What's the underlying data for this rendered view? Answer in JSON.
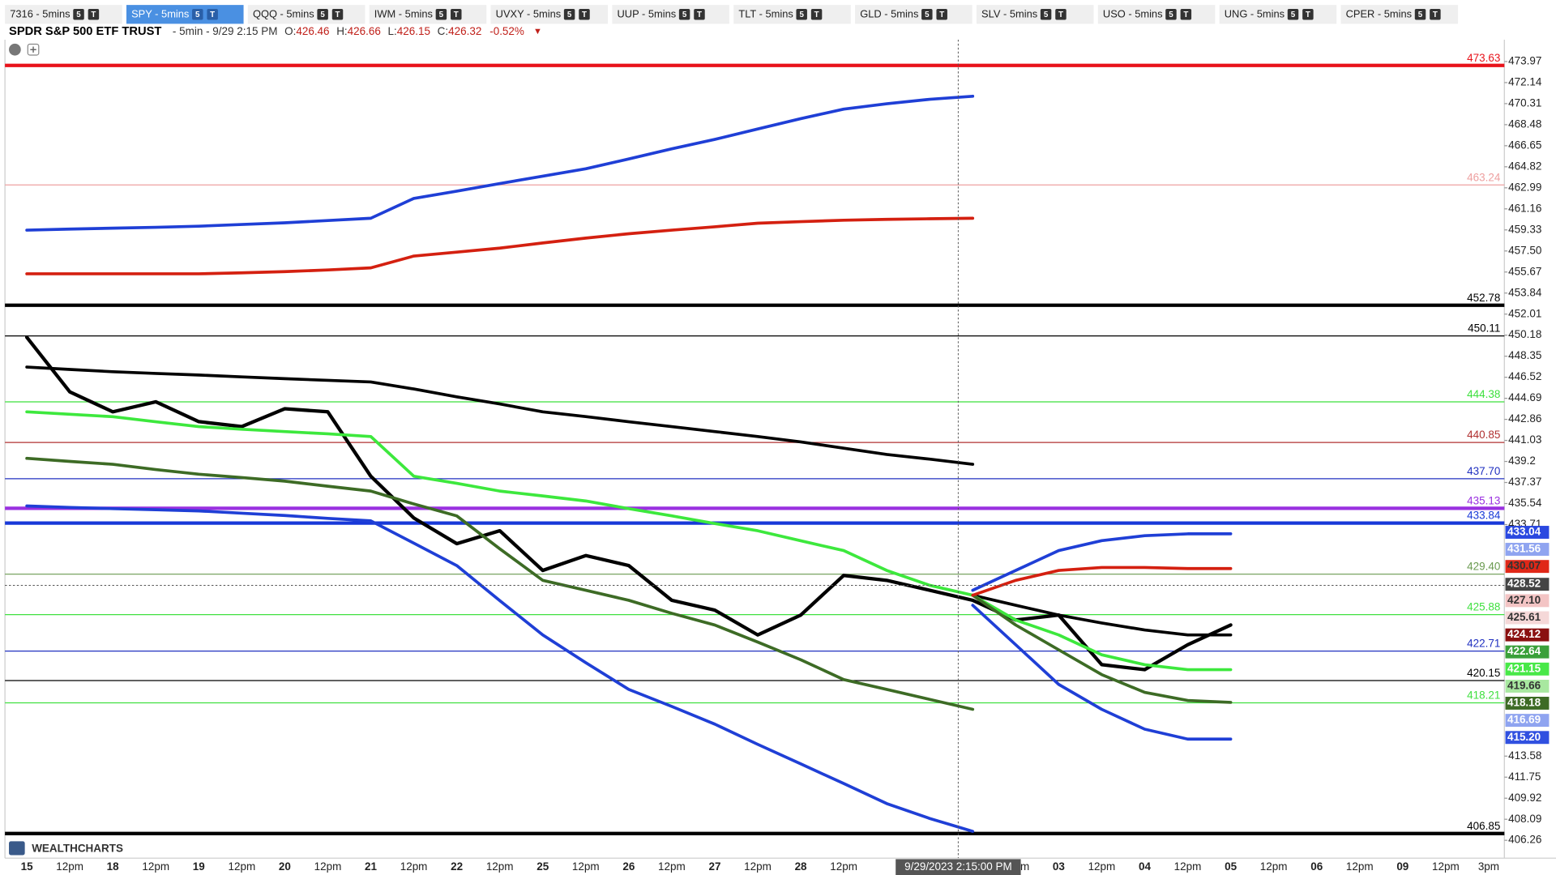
{
  "tabs": [
    {
      "label": "7316 - 5mins"
    },
    {
      "label": "SPY - 5mins"
    },
    {
      "label": "QQQ - 5mins"
    },
    {
      "label": "IWM - 5mins"
    },
    {
      "label": "UVXY - 5mins"
    },
    {
      "label": "UUP - 5mins"
    },
    {
      "label": "TLT - 5mins"
    },
    {
      "label": "GLD - 5mins"
    },
    {
      "label": "SLV - 5mins"
    },
    {
      "label": "USO - 5mins"
    },
    {
      "label": "UNG - 5mins"
    },
    {
      "label": "CPER - 5mins"
    }
  ],
  "active_tab": 1,
  "tab_badges": [
    "5",
    "T"
  ],
  "header": {
    "name": "SPDR S&P 500 ETF TRUST",
    "interval": "- 5min - 9/29 2:15 PM",
    "ohlc": [
      {
        "key": "O:",
        "value": "426.46"
      },
      {
        "key": "H:",
        "value": "426.66"
      },
      {
        "key": "L:",
        "value": "426.15"
      },
      {
        "key": "C:",
        "value": "426.32"
      }
    ],
    "change": "-0.52%",
    "arrow": "▼"
  },
  "logo": "WEALTHCHARTS",
  "chart_data": {
    "type": "line",
    "categories": [
      "15",
      "12pm",
      "18",
      "12pm",
      "19",
      "12pm",
      "20",
      "12pm",
      "21",
      "12pm",
      "22",
      "12pm",
      "25",
      "12pm",
      "26",
      "12pm",
      "27",
      "12pm",
      "28",
      "12pm",
      null,
      null,
      null,
      "12pm",
      "03",
      "12pm",
      "04",
      "12pm",
      "05",
      "12pm",
      "06",
      "12pm",
      "09",
      "12pm",
      "3pm"
    ],
    "crosshair_label": "9/29/2023 2:15:00 PM",
    "ylim": [
      404.71,
      475.87
    ],
    "yticks": [
      473.97,
      472.14,
      470.31,
      468.48,
      466.65,
      464.82,
      462.99,
      461.16,
      459.33,
      {
        "value": 457.5,
        "label": "457.50"
      },
      455.67,
      453.84,
      452.01,
      450.18,
      448.35,
      446.52,
      444.69,
      442.86,
      441.03,
      439.2,
      437.37,
      435.54,
      433.71,
      413.58,
      411.75,
      409.92,
      408.09,
      406.26
    ],
    "series": [
      {
        "color": "#000000",
        "values": [
          449.99,
          445.25,
          443.52,
          444.39,
          442.66,
          442.23,
          443.78,
          443.52,
          437.92,
          434.29,
          432.05,
          433.17,
          429.72,
          431.02,
          430.15,
          427.13,
          426.27,
          424.12,
          425.84,
          429.29,
          428.86,
          428.0,
          427.13,
          425.41,
          425.84,
          421.53,
          421.1,
          423.26,
          424.98,
          null,
          null,
          null,
          null,
          null,
          null
        ]
      },
      {
        "color": "#000000",
        "values": [
          447.41,
          447.2,
          447.0,
          446.85,
          446.72,
          446.55,
          446.4,
          446.25,
          446.11,
          445.5,
          444.82,
          444.2,
          443.52,
          443.1,
          442.65,
          442.23,
          441.8,
          441.37,
          440.9,
          440.35,
          439.81,
          439.4,
          438.95,
          null,
          null,
          null,
          null,
          null,
          null,
          null,
          null,
          null,
          null,
          null,
          null
        ]
      },
      {
        "color": "#000000",
        "values": [
          null,
          null,
          null,
          null,
          null,
          null,
          null,
          null,
          null,
          null,
          null,
          null,
          null,
          null,
          null,
          null,
          null,
          null,
          null,
          null,
          null,
          null,
          427.57,
          426.7,
          425.84,
          425.15,
          424.55,
          424.12,
          424.12,
          null,
          null,
          null,
          null,
          null,
          null
        ]
      },
      {
        "color": "#3de83d",
        "values": [
          443.52,
          443.3,
          443.09,
          442.65,
          442.23,
          442.0,
          441.8,
          441.6,
          441.37,
          437.92,
          437.3,
          436.62,
          436.2,
          435.76,
          435.1,
          434.47,
          433.8,
          433.17,
          432.3,
          431.45,
          429.72,
          428.43,
          427.57,
          null,
          null,
          null,
          null,
          null,
          null,
          null,
          null,
          null,
          null,
          null,
          null
        ]
      },
      {
        "color": "#3de83d",
        "values": [
          null,
          null,
          null,
          null,
          null,
          null,
          null,
          null,
          null,
          null,
          null,
          null,
          null,
          null,
          null,
          null,
          null,
          null,
          null,
          null,
          null,
          null,
          427.57,
          425.41,
          424.12,
          422.39,
          421.53,
          421.1,
          421.1,
          null,
          null,
          null,
          null,
          null,
          null
        ]
      },
      {
        "color": "#3d6b25",
        "values": [
          439.47,
          439.2,
          438.95,
          438.5,
          438.09,
          437.8,
          437.49,
          437.05,
          436.62,
          435.5,
          434.47,
          431.6,
          428.86,
          428.0,
          427.13,
          426.0,
          424.98,
          423.5,
          421.96,
          420.24,
          419.38,
          418.51,
          417.65,
          null,
          null,
          null,
          null,
          null,
          null,
          null,
          null,
          null,
          null,
          null,
          null
        ]
      },
      {
        "color": "#3d6b25",
        "values": [
          null,
          null,
          null,
          null,
          null,
          null,
          null,
          null,
          null,
          null,
          null,
          null,
          null,
          null,
          null,
          null,
          null,
          null,
          null,
          null,
          null,
          null,
          427.57,
          424.98,
          422.82,
          420.67,
          419.12,
          418.42,
          418.25,
          null,
          null,
          null,
          null,
          null,
          null
        ]
      },
      {
        "color": "#1f3fd6",
        "values": [
          459.31,
          459.4,
          459.48,
          459.56,
          459.65,
          459.8,
          459.95,
          460.15,
          460.34,
          462.07,
          462.7,
          463.36,
          464.0,
          464.65,
          465.5,
          466.38,
          467.2,
          468.11,
          469.0,
          469.83,
          470.3,
          470.69,
          470.95,
          null,
          null,
          null,
          null,
          null,
          null,
          null,
          null,
          null,
          null,
          null,
          null
        ]
      },
      {
        "color": "#1f3fd6",
        "values": [
          435.33,
          435.2,
          435.1,
          435.0,
          434.9,
          434.7,
          434.5,
          434.25,
          434.04,
          432.1,
          430.15,
          427.1,
          424.12,
          421.7,
          419.38,
          417.9,
          416.36,
          414.6,
          412.9,
          411.2,
          409.45,
          408.16,
          407.04,
          null,
          null,
          null,
          null,
          null,
          null,
          null,
          null,
          null,
          null,
          null,
          null
        ]
      },
      {
        "color": "#1f3fd6",
        "values": [
          null,
          null,
          null,
          null,
          null,
          null,
          null,
          null,
          null,
          null,
          null,
          null,
          null,
          null,
          null,
          null,
          null,
          null,
          null,
          null,
          null,
          null,
          428.0,
          429.72,
          431.45,
          432.31,
          432.74,
          432.91,
          432.91,
          null,
          null,
          null,
          null,
          null,
          null
        ]
      },
      {
        "color": "#1f3fd6",
        "values": [
          null,
          null,
          null,
          null,
          null,
          null,
          null,
          null,
          null,
          null,
          null,
          null,
          null,
          null,
          null,
          null,
          null,
          null,
          null,
          null,
          null,
          null,
          426.7,
          423.26,
          419.81,
          417.65,
          415.92,
          415.06,
          415.06,
          null,
          null,
          null,
          null,
          null,
          null
        ]
      },
      {
        "color": "#d42010",
        "values": [
          455.51,
          455.51,
          455.51,
          455.51,
          455.51,
          455.6,
          455.7,
          455.85,
          456.03,
          457.06,
          457.4,
          457.75,
          458.2,
          458.62,
          459.0,
          459.31,
          459.6,
          459.91,
          460.05,
          460.17,
          460.25,
          460.3,
          460.34,
          null,
          null,
          null,
          null,
          null,
          null,
          null,
          null,
          null,
          null,
          null,
          null
        ]
      },
      {
        "color": "#d42010",
        "values": [
          null,
          null,
          null,
          null,
          null,
          null,
          null,
          null,
          null,
          null,
          null,
          null,
          null,
          null,
          null,
          null,
          null,
          null,
          null,
          null,
          null,
          null,
          427.57,
          428.86,
          429.72,
          429.98,
          429.98,
          429.89,
          429.89,
          null,
          null,
          null,
          null,
          null,
          null
        ]
      }
    ],
    "levels": [
      {
        "value": 473.63,
        "color": "#e8121a",
        "bold": true
      },
      {
        "value": 463.24,
        "color": "#eea0a0"
      },
      {
        "value": 452.78,
        "color": "#000000",
        "bold": true
      },
      {
        "value": 450.11,
        "color": "#000000"
      },
      {
        "value": 444.38,
        "color": "#3ce03c"
      },
      {
        "value": 440.85,
        "color": "#b03030"
      },
      {
        "value": 437.7,
        "label": "437.70",
        "color": "#2030c0"
      },
      {
        "value": 435.13,
        "color": "#9a30e0",
        "bold": true
      },
      {
        "value": 433.84,
        "color": "#1838d8",
        "bold": true
      },
      {
        "value": 429.4,
        "label": "429.40",
        "color": "#6a9a50"
      },
      {
        "value": 425.88,
        "color": "#40e040"
      },
      {
        "value": 422.71,
        "color": "#2030c0"
      },
      {
        "value": 420.15,
        "color": "#000000"
      },
      {
        "value": 418.21,
        "color": "#40e040"
      },
      {
        "value": 406.85,
        "color": "#000000",
        "bold": true
      }
    ],
    "last_values": [
      {
        "value": 433.04,
        "color": "#2a48e0"
      },
      {
        "value": 431.56,
        "color": "#8fa4f0"
      },
      {
        "value": 430.07,
        "color": "#e02818"
      },
      {
        "value": 428.52,
        "color": "#444444"
      },
      {
        "value": 427.1,
        "label": "427.10",
        "color": "#f3c4c4"
      },
      {
        "value": 425.61,
        "color": "#f5d8d8"
      },
      {
        "value": 424.12,
        "color": "#8a1010"
      },
      {
        "value": 422.64,
        "color": "#3aa03a"
      },
      {
        "value": 421.15,
        "color": "#48e848"
      },
      {
        "value": 419.66,
        "color": "#a8e8a0"
      },
      {
        "value": 418.18,
        "color": "#3d6b25"
      },
      {
        "value": 416.69,
        "color": "#8fa4f0"
      },
      {
        "value": 415.2,
        "label": "415.20",
        "color": "#3050e0"
      }
    ]
  }
}
